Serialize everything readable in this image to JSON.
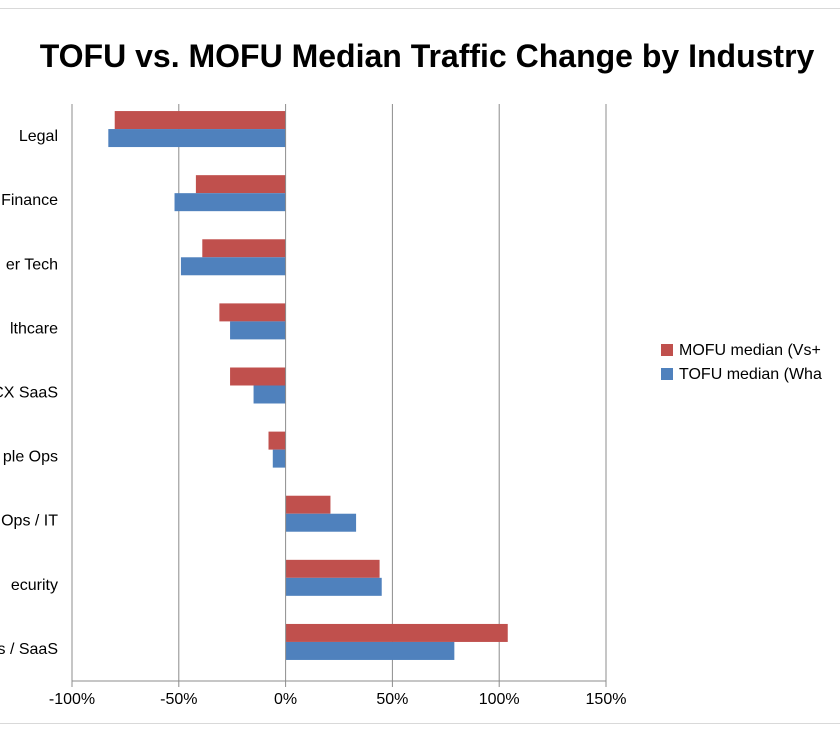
{
  "chart_data": {
    "type": "bar",
    "orientation": "horizontal",
    "title": "TOFU vs. MOFU Median Traffic Change by Industry",
    "categories": [
      "Legal",
      "Finance",
      "er Tech",
      "lthcare",
      "CX SaaS",
      "ple Ops",
      "Ops / IT",
      "ecurity",
      "s / SaaS"
    ],
    "series": [
      {
        "name": "MOFU median (Vs+",
        "color": "#c0504d",
        "values": [
          -80,
          -42,
          -39,
          -31,
          -26,
          -8,
          21,
          44,
          104
        ]
      },
      {
        "name": "TOFU median (Wha",
        "color": "#4f81bd",
        "values": [
          -83,
          -52,
          -49,
          -26,
          -15,
          -6,
          33,
          45,
          79
        ]
      }
    ],
    "xlim": [
      -100,
      150
    ],
    "x_ticks": [
      -100,
      -50,
      0,
      50,
      100,
      150
    ],
    "x_tick_labels": [
      "-100%",
      "-50%",
      "0%",
      "50%",
      "100%",
      "150%"
    ],
    "xlabel": "",
    "ylabel": "",
    "grid": "vertical major",
    "legend": "right"
  }
}
